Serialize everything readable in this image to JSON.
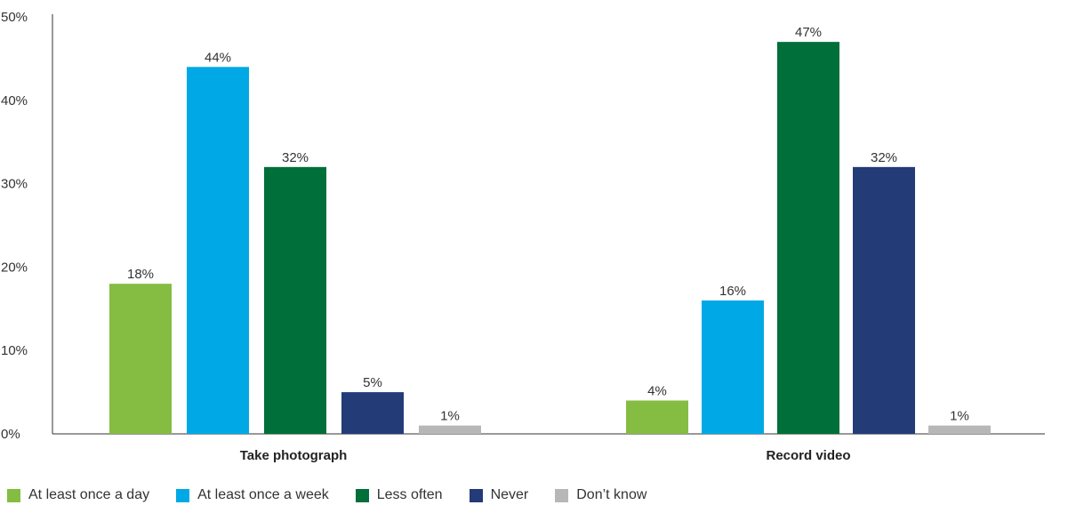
{
  "chart_data": {
    "type": "bar",
    "categories": [
      "Take photograph",
      "Record video"
    ],
    "series": [
      {
        "name": "At least once a day",
        "values": [
          18,
          4
        ],
        "color": "#84BD41"
      },
      {
        "name": "At least once a week",
        "values": [
          44,
          16
        ],
        "color": "#00A9E6"
      },
      {
        "name": "Less often",
        "values": [
          32,
          47
        ],
        "color": "#006F3A"
      },
      {
        "name": "Never",
        "values": [
          5,
          32
        ],
        "color": "#233B77"
      },
      {
        "name": "Don’t know",
        "values": [
          1,
          1
        ],
        "color": "#B7B7B7"
      }
    ],
    "value_suffix": "%",
    "ylim": [
      0,
      50
    ],
    "yticks": [
      0,
      10,
      20,
      30,
      40,
      50
    ],
    "ytick_labels": [
      "0%",
      "10%",
      "20%",
      "30%",
      "40%",
      "50%"
    ],
    "grid": false,
    "legend_position": "bottom-left"
  }
}
